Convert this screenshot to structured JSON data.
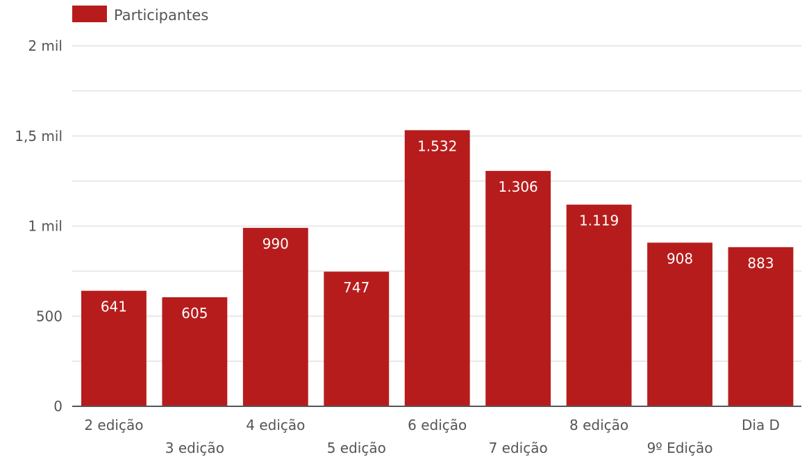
{
  "chart_data": {
    "type": "bar",
    "categories": [
      "2 edição",
      "3 edição",
      "4 edição",
      "5 edição",
      "6 edição",
      "7 edição",
      "8 edição",
      "9º Edição",
      "Dia D"
    ],
    "series": [
      {
        "name": "Participantes",
        "values": [
          641,
          605,
          990,
          747,
          1532,
          1306,
          1119,
          908,
          883
        ],
        "labels": [
          "641",
          "605",
          "990",
          "747",
          "1.532",
          "1.306",
          "1.119",
          "908",
          "883"
        ],
        "color": "#b71c1c"
      }
    ],
    "ylim": [
      0,
      2000
    ],
    "yticks": [
      0,
      500,
      1000,
      1500,
      2000
    ],
    "ytick_labels": [
      "0",
      "500",
      "1 mil",
      "1,5 mil",
      "2 mil"
    ],
    "grid": true,
    "legend_position": "top-left"
  }
}
